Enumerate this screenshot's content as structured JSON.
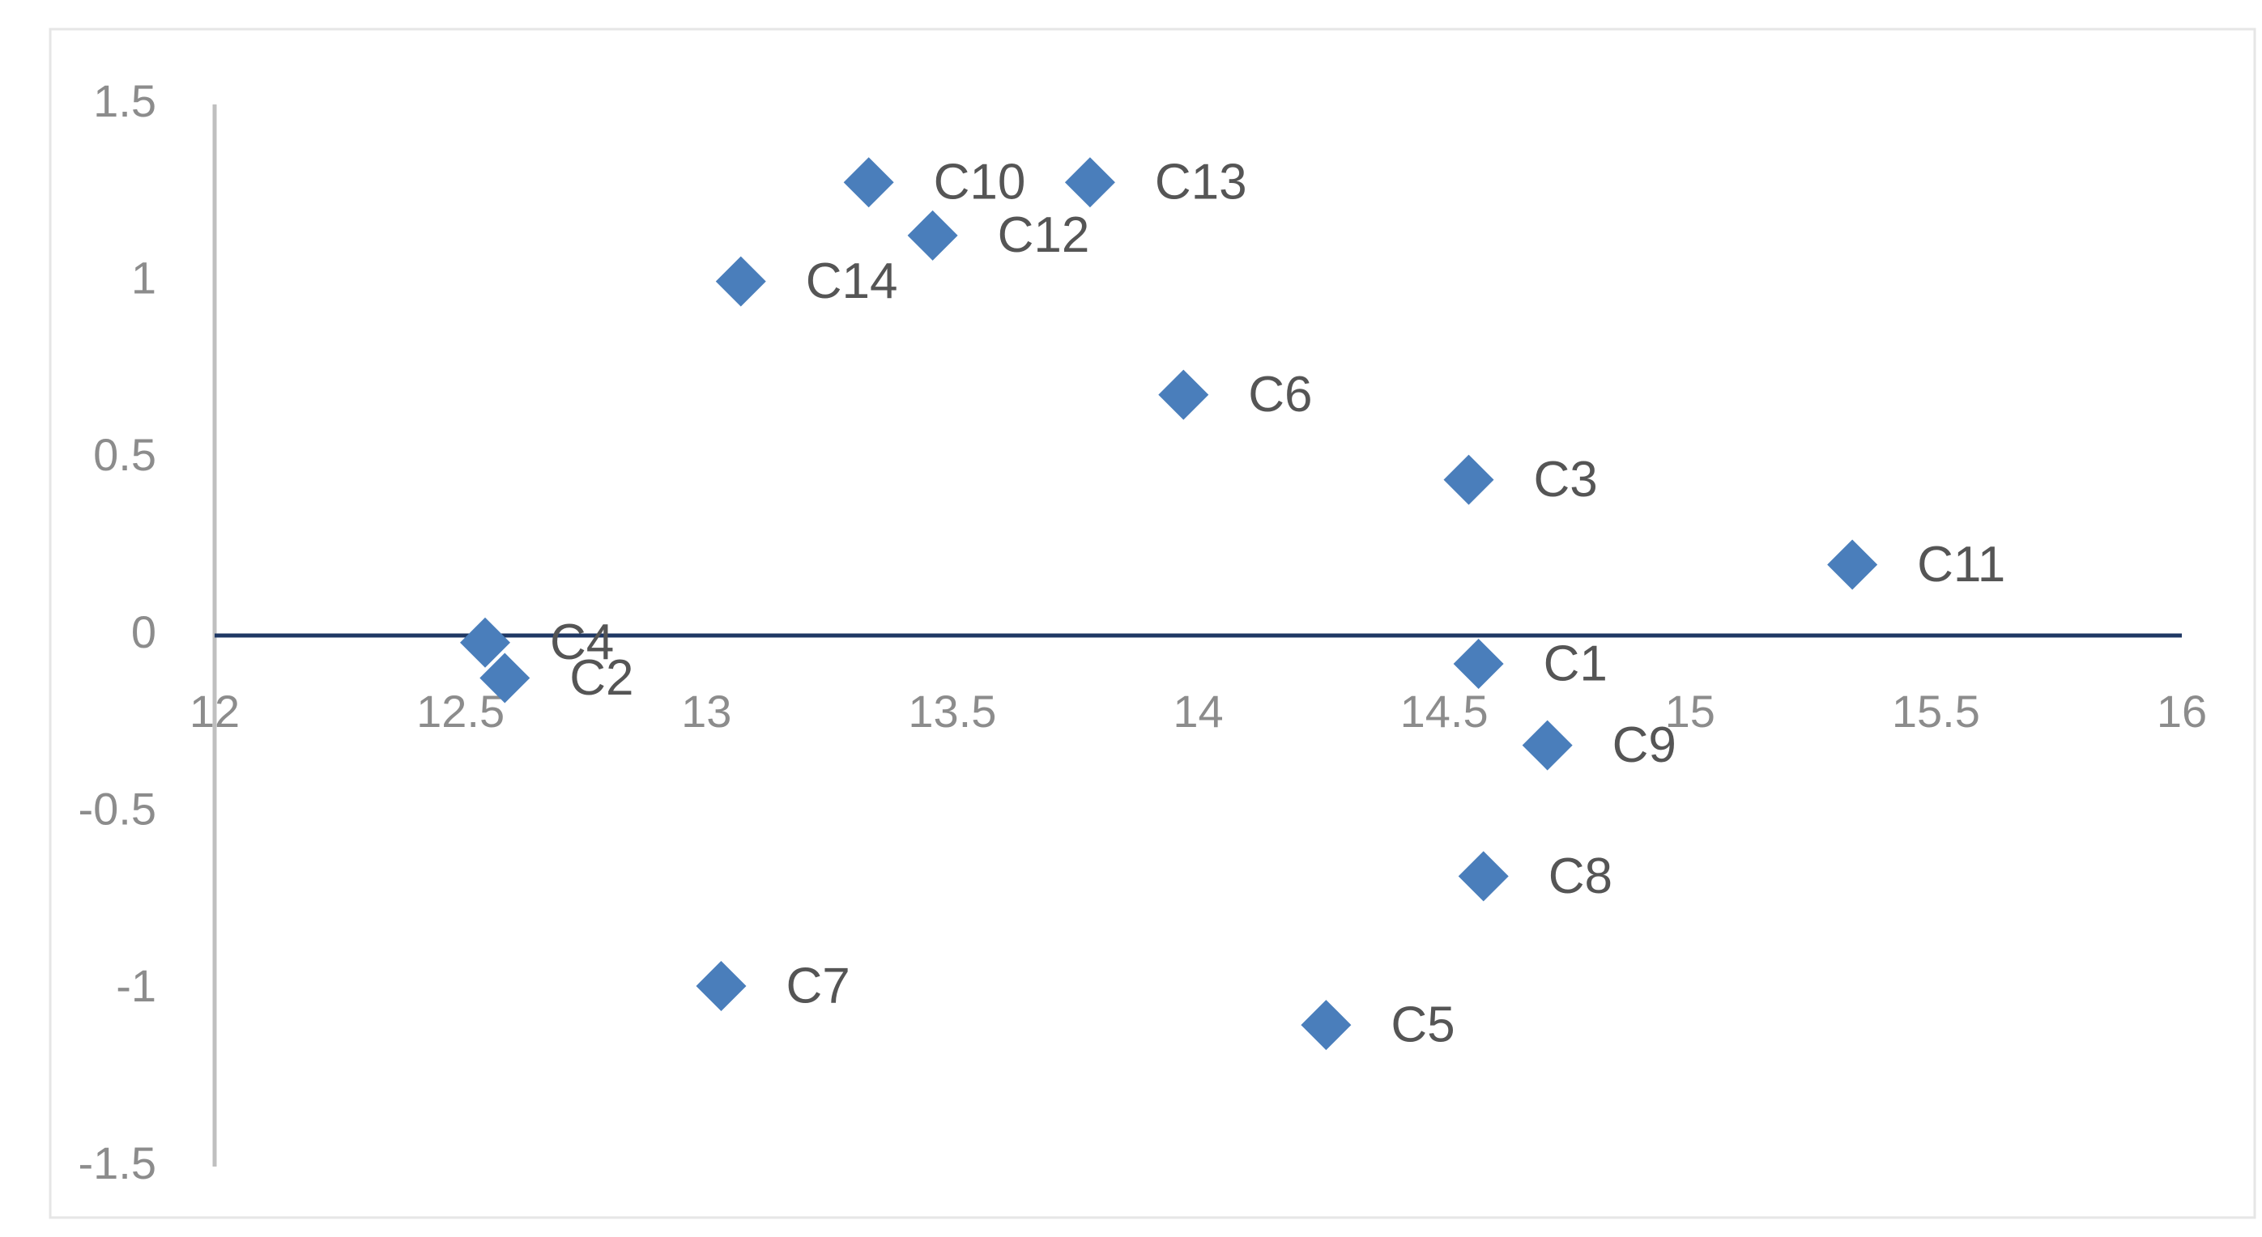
{
  "chart_data": {
    "type": "scatter",
    "x": [
      14.57,
      12.59,
      14.55,
      12.55,
      14.26,
      13.97,
      13.03,
      14.58,
      14.71,
      13.33,
      15.33,
      13.46,
      13.78,
      13.07
    ],
    "series": [
      {
        "color": "#4a7ebb",
        "values": [
          -0.08,
          -0.12,
          0.44,
          -0.02,
          -1.1,
          0.68,
          -0.99,
          -0.68,
          -0.31,
          1.28,
          0.2,
          1.13,
          1.28,
          1.0
        ]
      }
    ],
    "point_labels": [
      "C1",
      "C2",
      "C3",
      "C4",
      "C5",
      "C6",
      "C7",
      "C8",
      "C9",
      "C10",
      "C11",
      "C12",
      "C13",
      "C14"
    ],
    "xlim": [
      12,
      16
    ],
    "xticks": [
      12,
      12.5,
      13,
      13.5,
      14,
      14.5,
      15,
      15.5,
      16
    ],
    "ylim": [
      -1.5,
      1.5
    ],
    "yticks": [
      -1.5,
      -1,
      -0.5,
      0,
      0.5,
      1,
      1.5
    ]
  }
}
